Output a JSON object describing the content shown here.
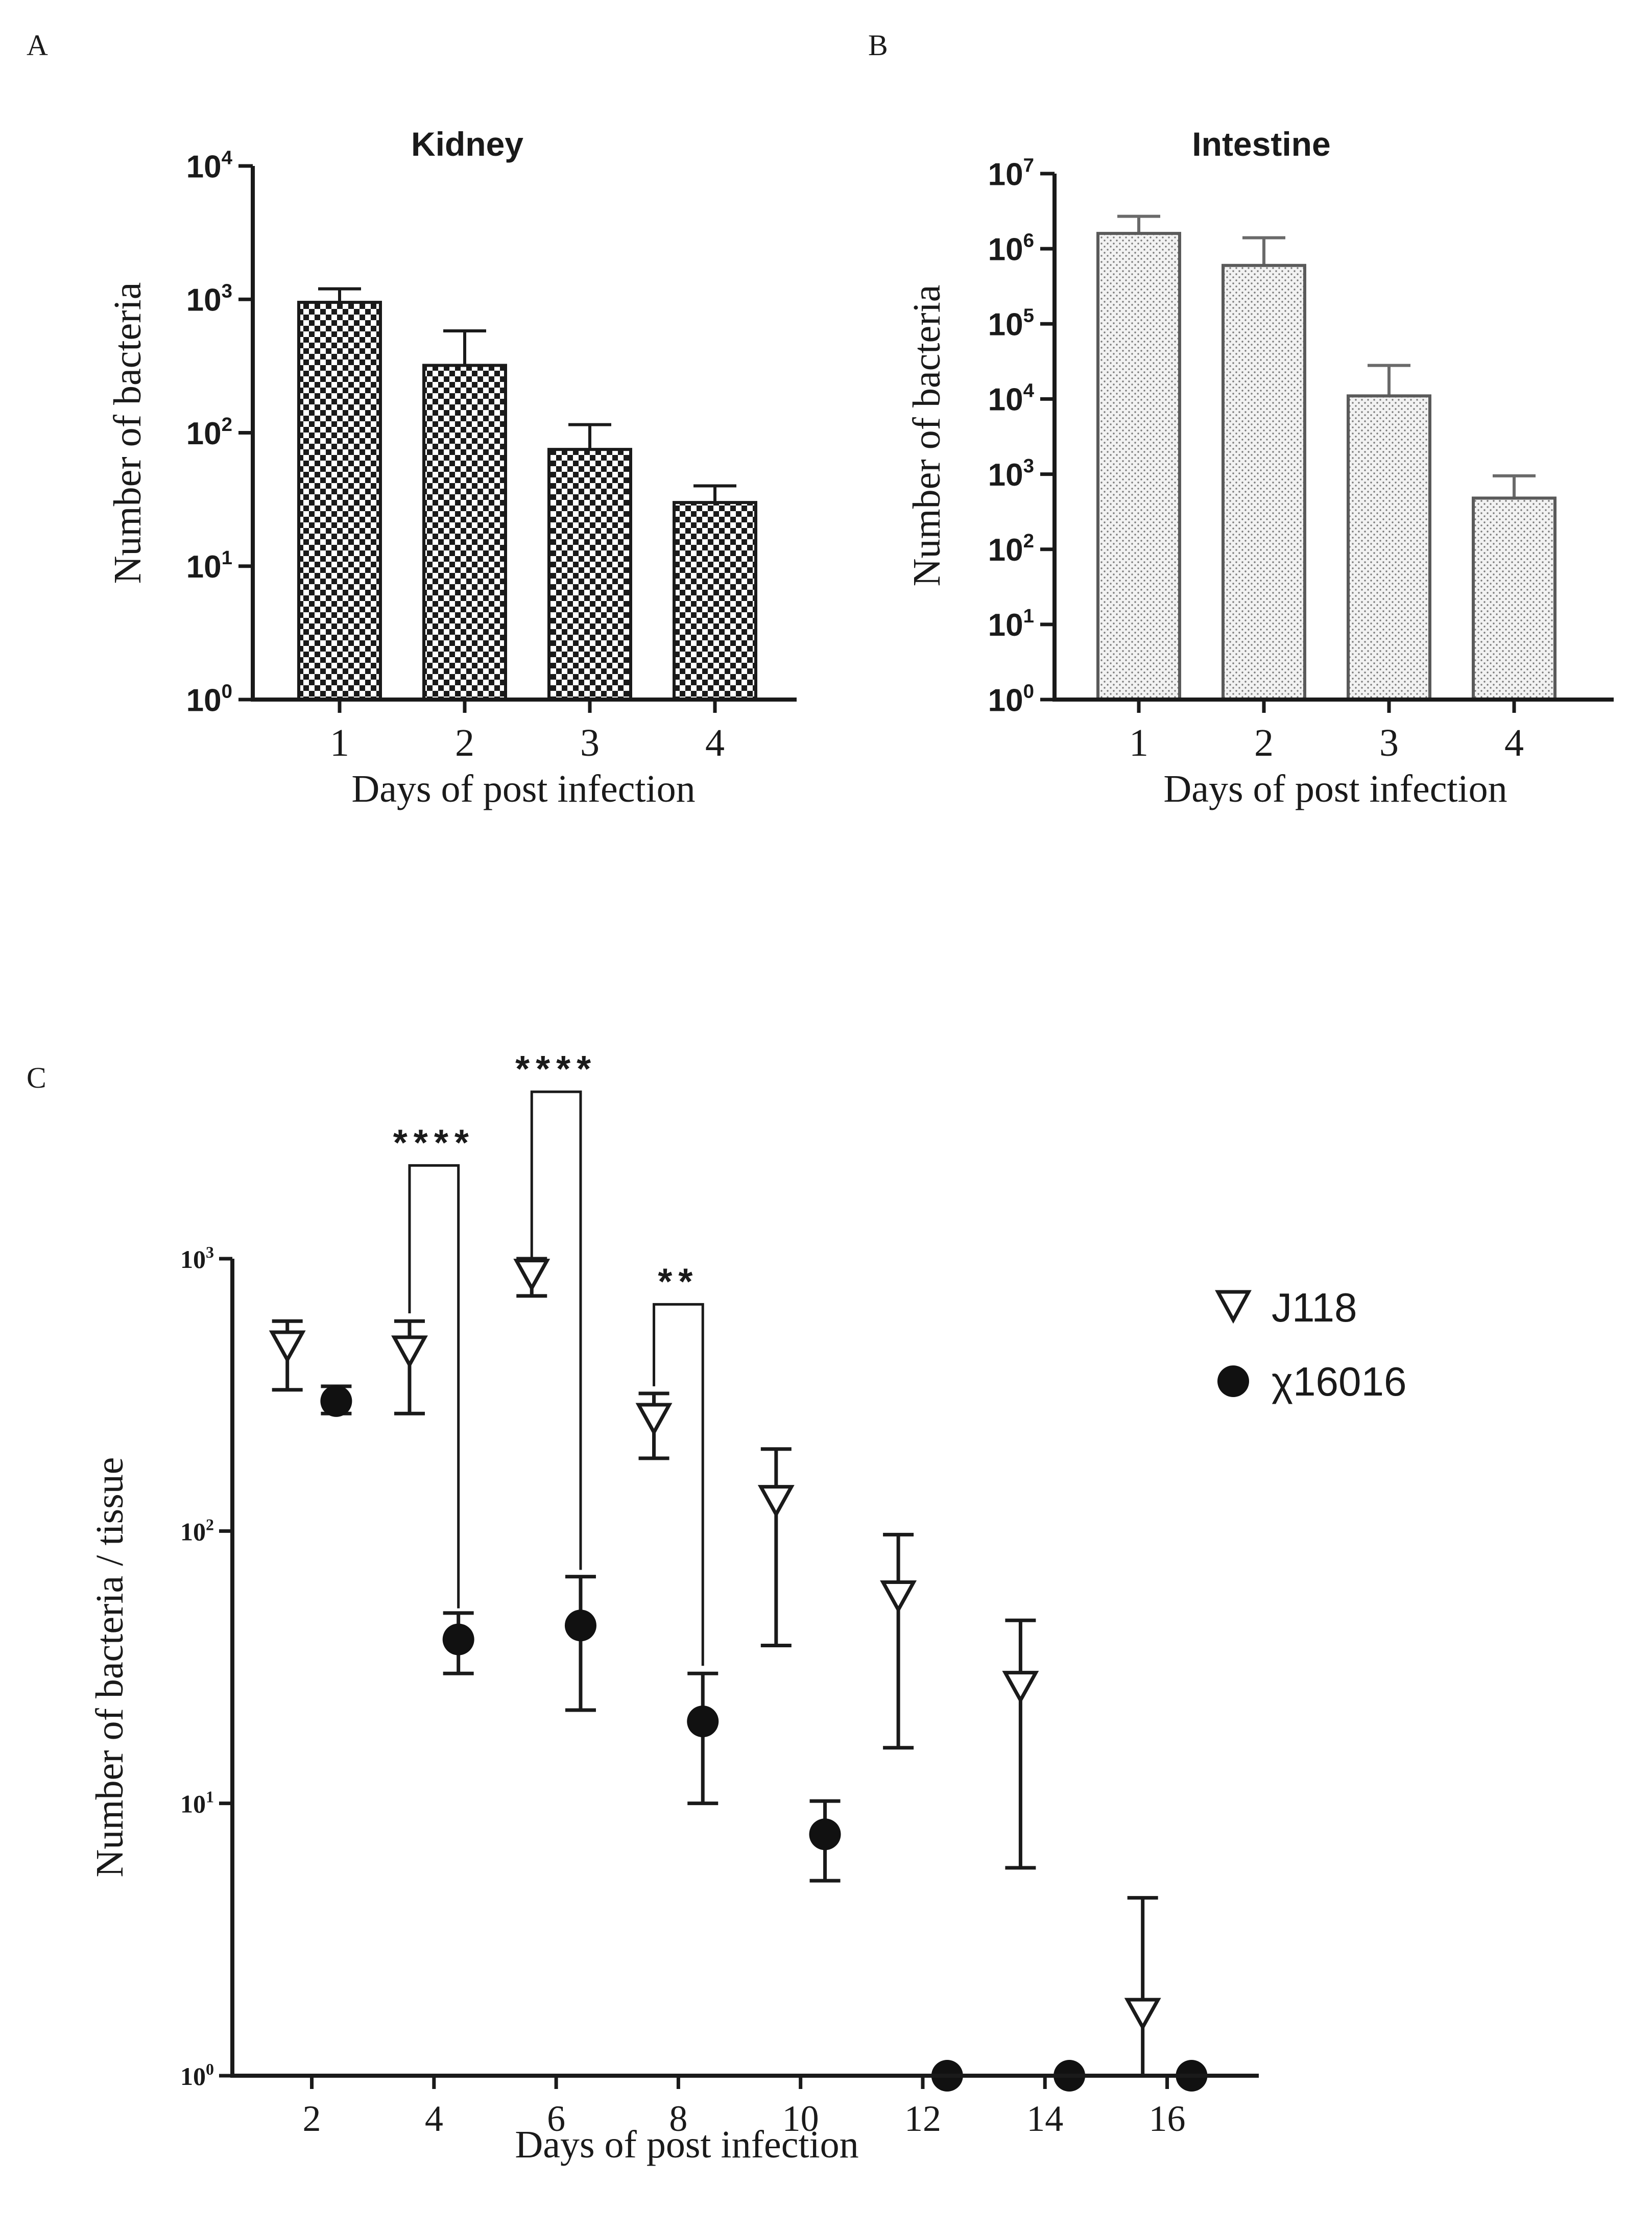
{
  "colors": {
    "ink": "#1a1a1a",
    "bar_stroke_a": "#1a1a1a",
    "bar_stroke_b": "#5a5a5a",
    "error_bar_b": "#6a6a6a"
  },
  "panels": {
    "a": {
      "letter": "A"
    },
    "b": {
      "letter": "B"
    },
    "c": {
      "letter": "C"
    }
  },
  "chart_data": [
    {
      "id": "A",
      "type": "bar",
      "title": "Kidney",
      "xlabel": "Days of post infection",
      "ylabel": "Number of bacteria",
      "yscale": "log",
      "ylim": [
        1,
        10000
      ],
      "categories": [
        "1",
        "2",
        "3",
        "4"
      ],
      "values": [
        950,
        320,
        75,
        30
      ],
      "errors": [
        1200,
        580,
        115,
        40
      ],
      "yticks": [
        {
          "base": "10",
          "exp": "0"
        },
        {
          "base": "10",
          "exp": "1"
        },
        {
          "base": "10",
          "exp": "2"
        },
        {
          "base": "10",
          "exp": "3"
        },
        {
          "base": "10",
          "exp": "4"
        }
      ],
      "fill": "checkerboard"
    },
    {
      "id": "B",
      "type": "bar",
      "title": "Intestine",
      "xlabel": "Days of post infection",
      "ylabel": "Number of bacteria",
      "yscale": "log",
      "ylim": [
        1,
        10000000
      ],
      "categories": [
        "1",
        "2",
        "3",
        "4"
      ],
      "values": [
        1600000,
        600000,
        11000,
        480
      ],
      "errors": [
        2700000,
        1400000,
        28000,
        950
      ],
      "yticks": [
        {
          "base": "10",
          "exp": "0"
        },
        {
          "base": "10",
          "exp": "1"
        },
        {
          "base": "10",
          "exp": "2"
        },
        {
          "base": "10",
          "exp": "3"
        },
        {
          "base": "10",
          "exp": "4"
        },
        {
          "base": "10",
          "exp": "5"
        },
        {
          "base": "10",
          "exp": "6"
        },
        {
          "base": "10",
          "exp": "7"
        }
      ],
      "fill": "dotted"
    },
    {
      "id": "C",
      "type": "scatter",
      "xlabel": "Days of post infection",
      "ylabel": "Number of bacteria / tissue",
      "yscale": "log",
      "ylim": [
        1,
        1000
      ],
      "xlim": [
        0.7,
        17.5
      ],
      "xticks": [
        "2",
        "4",
        "6",
        "8",
        "10",
        "12",
        "14",
        "16"
      ],
      "yticks": [
        {
          "base": "10",
          "exp": "0"
        },
        {
          "base": "10",
          "exp": "1"
        },
        {
          "base": "10",
          "exp": "2"
        },
        {
          "base": "10",
          "exp": "3"
        }
      ],
      "legend": [
        {
          "label": "J118",
          "marker": "open-triangle-down"
        },
        {
          "label": "χ16016",
          "marker": "filled-circle"
        }
      ],
      "series": [
        {
          "name": "J118",
          "x": [
            1.6,
            3.6,
            5.6,
            7.6,
            9.6,
            11.6,
            13.6,
            15.6
          ],
          "y": [
            480,
            460,
            880,
            260,
            130,
            58,
            27,
            1.7
          ],
          "err_low": [
            330,
            270,
            730,
            185,
            38,
            16,
            5.8,
            1.0
          ],
          "err_high": [
            590,
            590,
            1000,
            320,
            200,
            97,
            47,
            4.5
          ]
        },
        {
          "name": "χ16016",
          "x": [
            2.4,
            4.4,
            6.4,
            8.4,
            10.4,
            12.4,
            14.4,
            16.4
          ],
          "y": [
            300,
            40,
            45,
            20,
            7.7,
            1,
            1,
            1
          ],
          "err_low": [
            270,
            30,
            22,
            10,
            5.2,
            1,
            1,
            1
          ],
          "err_high": [
            340,
            50,
            68,
            30,
            10.2,
            1,
            1,
            1
          ]
        }
      ],
      "significance": [
        {
          "label": "****",
          "x1": 3.6,
          "y1": 630,
          "x2": 4.4,
          "y2": 52,
          "top": 2200
        },
        {
          "label": "****",
          "x1": 5.6,
          "y1": 1000,
          "x2": 6.4,
          "y2": 72,
          "top": 4100
        },
        {
          "label": "**",
          "x1": 7.6,
          "y1": 340,
          "x2": 8.4,
          "y2": 32,
          "top": 680
        }
      ]
    }
  ]
}
